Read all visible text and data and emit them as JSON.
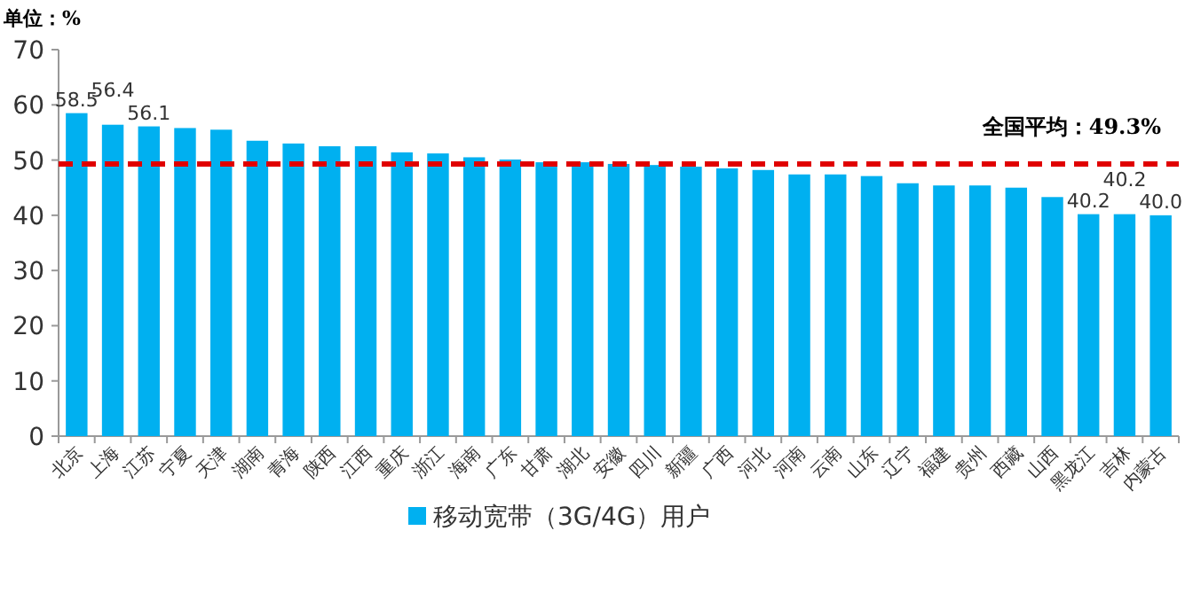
{
  "chart_data": {
    "type": "bar",
    "ylabel": "单位：%",
    "categories": [
      "北京",
      "上海",
      "江苏",
      "宁夏",
      "天津",
      "湖南",
      "青海",
      "陕西",
      "江西",
      "重庆",
      "浙江",
      "海南",
      "广东",
      "甘肃",
      "湖北",
      "安徽",
      "四川",
      "新疆",
      "广西",
      "河北",
      "河南",
      "云南",
      "山东",
      "辽宁",
      "福建",
      "贵州",
      "西藏",
      "山西",
      "黑龙江",
      "吉林",
      "内蒙古"
    ],
    "series": [
      {
        "name": "移动宽带（3G/4G）用户",
        "color": "#00b0f0",
        "values": [
          58.5,
          56.4,
          56.1,
          55.8,
          55.5,
          53.5,
          53.0,
          52.5,
          52.5,
          51.4,
          51.2,
          50.5,
          50.1,
          49.6,
          49.6,
          49.3,
          49.1,
          48.8,
          48.5,
          48.2,
          47.4,
          47.4,
          47.1,
          45.8,
          45.4,
          45.4,
          45.0,
          43.3,
          40.2,
          40.2,
          40.0
        ],
        "value_labels": [
          "58.5",
          "56.4",
          "56.1",
          null,
          null,
          null,
          null,
          null,
          null,
          null,
          null,
          null,
          null,
          null,
          null,
          null,
          null,
          null,
          null,
          null,
          null,
          null,
          null,
          null,
          null,
          null,
          null,
          null,
          "40.2",
          "40.2",
          "40.0"
        ]
      }
    ],
    "ylim": [
      0,
      70
    ],
    "yticks": [
      0,
      10,
      20,
      30,
      40,
      50,
      60,
      70
    ],
    "ref_lines": [
      {
        "axis": "y",
        "value": 49.3,
        "label": "全国平均：49.3%",
        "color": "#e00000",
        "line_style": "dashed"
      }
    ],
    "legend": "bottom"
  }
}
